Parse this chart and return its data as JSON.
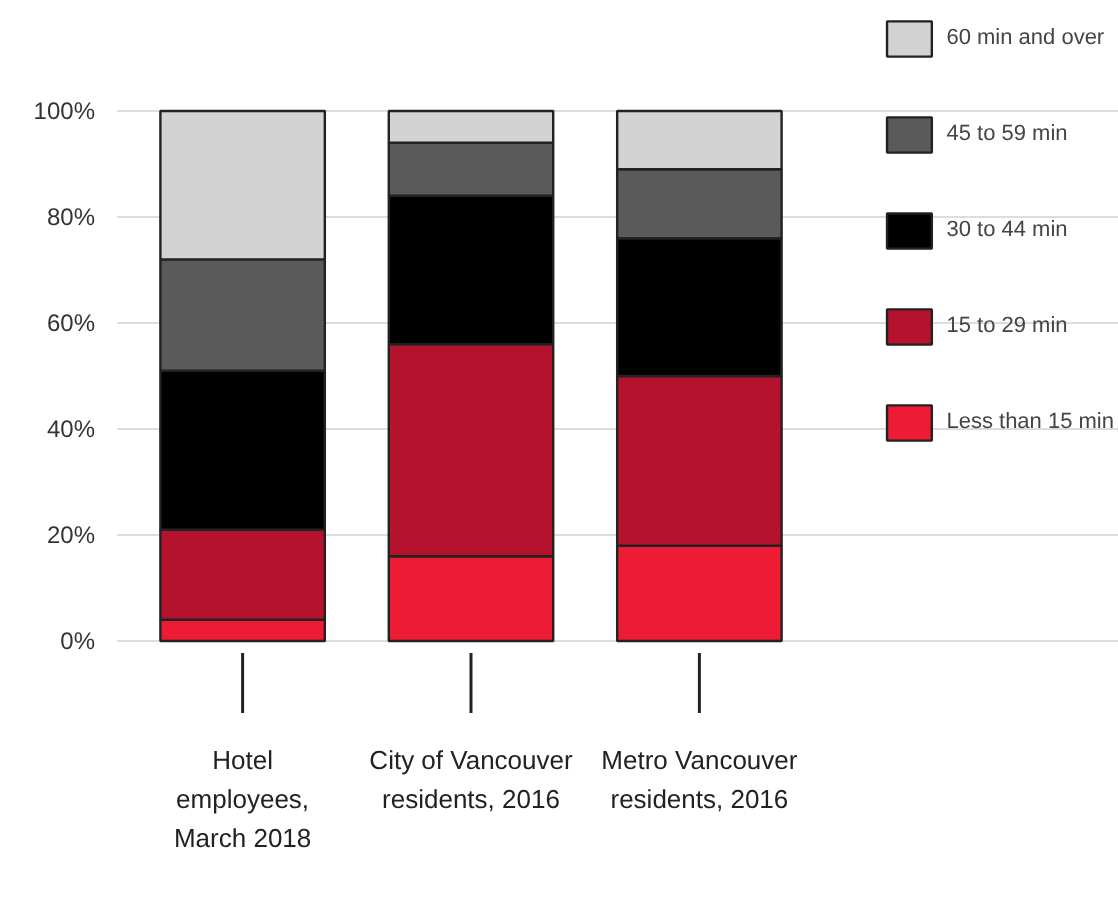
{
  "chart_data": {
    "type": "bar",
    "stacked": true,
    "categories": [
      "Hotel\nemployees,\nMarch 2018",
      "City of Vancouver\nresidents, 2016",
      "Metro Vancouver\nresidents, 2016"
    ],
    "series": [
      {
        "name": "Less than 15 min",
        "color": "#ed1b34",
        "values": [
          4,
          16,
          18
        ]
      },
      {
        "name": "15 to 29 min",
        "color": "#b5132d",
        "values": [
          17,
          40,
          32
        ]
      },
      {
        "name": "30 to 44 min",
        "color": "#000000",
        "values": [
          30,
          28,
          26
        ]
      },
      {
        "name": "45 to 59 min",
        "color": "#5a5a5a",
        "values": [
          21,
          10,
          13
        ]
      },
      {
        "name": "60 min and over",
        "color": "#d3d3d3",
        "values": [
          28,
          6,
          11
        ]
      }
    ],
    "ylim": [
      0,
      100
    ],
    "yticks": [
      {
        "value": 0,
        "label": "0%"
      },
      {
        "value": 20,
        "label": "20%"
      },
      {
        "value": 40,
        "label": "40%"
      },
      {
        "value": 60,
        "label": "60%"
      },
      {
        "value": 80,
        "label": "80%"
      },
      {
        "value": 100,
        "label": "100%"
      }
    ],
    "grid": "y",
    "legend": "right"
  }
}
